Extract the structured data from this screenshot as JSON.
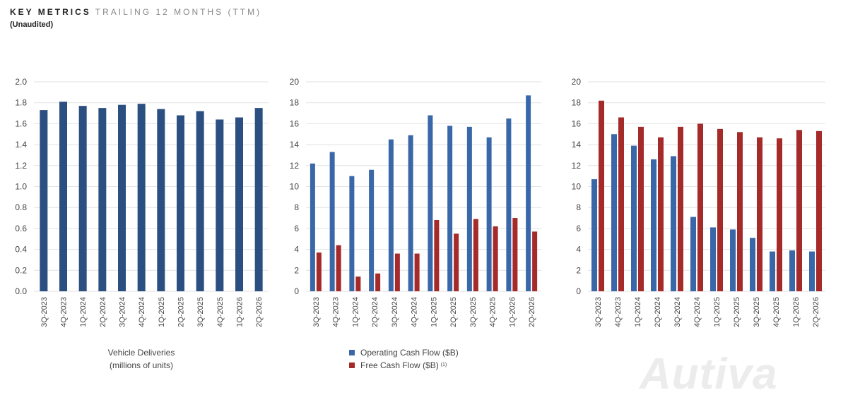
{
  "header": {
    "title_strong": "KEY METRICS",
    "title_light": "TRAILING 12 MONTHS (TTM)",
    "subtitle": "(Unaudited)"
  },
  "watermark": "Autiva",
  "chart_data": [
    {
      "type": "bar",
      "categories": [
        "3Q-2023",
        "4Q-2023",
        "1Q-2024",
        "2Q-2024",
        "3Q-2024",
        "4Q-2024",
        "1Q-2025",
        "2Q-2025",
        "3Q-2025",
        "4Q-2025",
        "1Q-2026",
        "2Q-2026"
      ],
      "series": [
        {
          "name": "Vehicle Deliveries (millions of units)",
          "color": "#2b4f80",
          "values": [
            1.73,
            1.81,
            1.77,
            1.75,
            1.78,
            1.79,
            1.74,
            1.68,
            1.72,
            1.64,
            1.66,
            1.75
          ]
        }
      ],
      "ylim": [
        0,
        2.0
      ],
      "yticks": [
        "0.0",
        "0.2",
        "0.4",
        "0.6",
        "0.8",
        "1.0",
        "1.2",
        "1.4",
        "1.6",
        "1.8",
        "2.0"
      ],
      "caption": [
        "Vehicle Deliveries",
        "(millions of units)"
      ],
      "grid": true
    },
    {
      "type": "bar",
      "categories": [
        "3Q-2023",
        "4Q-2023",
        "1Q-2024",
        "2Q-2024",
        "3Q-2024",
        "4Q-2024",
        "1Q-2025",
        "2Q-2025",
        "3Q-2025",
        "4Q-2025",
        "1Q-2026",
        "2Q-2026"
      ],
      "series": [
        {
          "name": "Operating Cash Flow ($B)",
          "color": "#3a67a8",
          "values": [
            12.2,
            13.3,
            11.0,
            11.6,
            14.5,
            14.9,
            16.8,
            15.8,
            15.7,
            14.7,
            16.5,
            18.7
          ]
        },
        {
          "name": "Free Cash Flow ($B)",
          "superscript": "(1)",
          "color": "#a52a2a",
          "values": [
            3.7,
            4.4,
            1.4,
            1.7,
            3.6,
            3.6,
            6.8,
            5.5,
            6.9,
            6.2,
            7.0,
            5.7
          ]
        }
      ],
      "ylim": [
        0,
        20
      ],
      "yticks": [
        "0",
        "2",
        "4",
        "6",
        "8",
        "10",
        "12",
        "14",
        "16",
        "18",
        "20"
      ],
      "legend": "bottom",
      "grid": true
    },
    {
      "type": "bar",
      "categories": [
        "3Q-2023",
        "4Q-2023",
        "1Q-2024",
        "2Q-2024",
        "3Q-2024",
        "4Q-2024",
        "1Q-2025",
        "2Q-2025",
        "3Q-2025",
        "4Q-2025",
        "1Q-2026",
        "2Q-2026"
      ],
      "series": [
        {
          "color": "#3a67a8",
          "values": [
            10.7,
            15.0,
            13.9,
            12.6,
            12.9,
            7.1,
            6.1,
            5.9,
            5.1,
            3.8,
            3.9,
            3.8
          ]
        },
        {
          "color": "#a52a2a",
          "values": [
            18.2,
            16.6,
            15.7,
            14.7,
            15.7,
            16.0,
            15.5,
            15.2,
            14.7,
            14.6,
            15.4,
            15.3
          ]
        }
      ],
      "ylim": [
        0,
        20
      ],
      "yticks": [
        "0",
        "2",
        "4",
        "6",
        "8",
        "10",
        "12",
        "14",
        "16",
        "18",
        "20"
      ],
      "grid": true
    }
  ]
}
